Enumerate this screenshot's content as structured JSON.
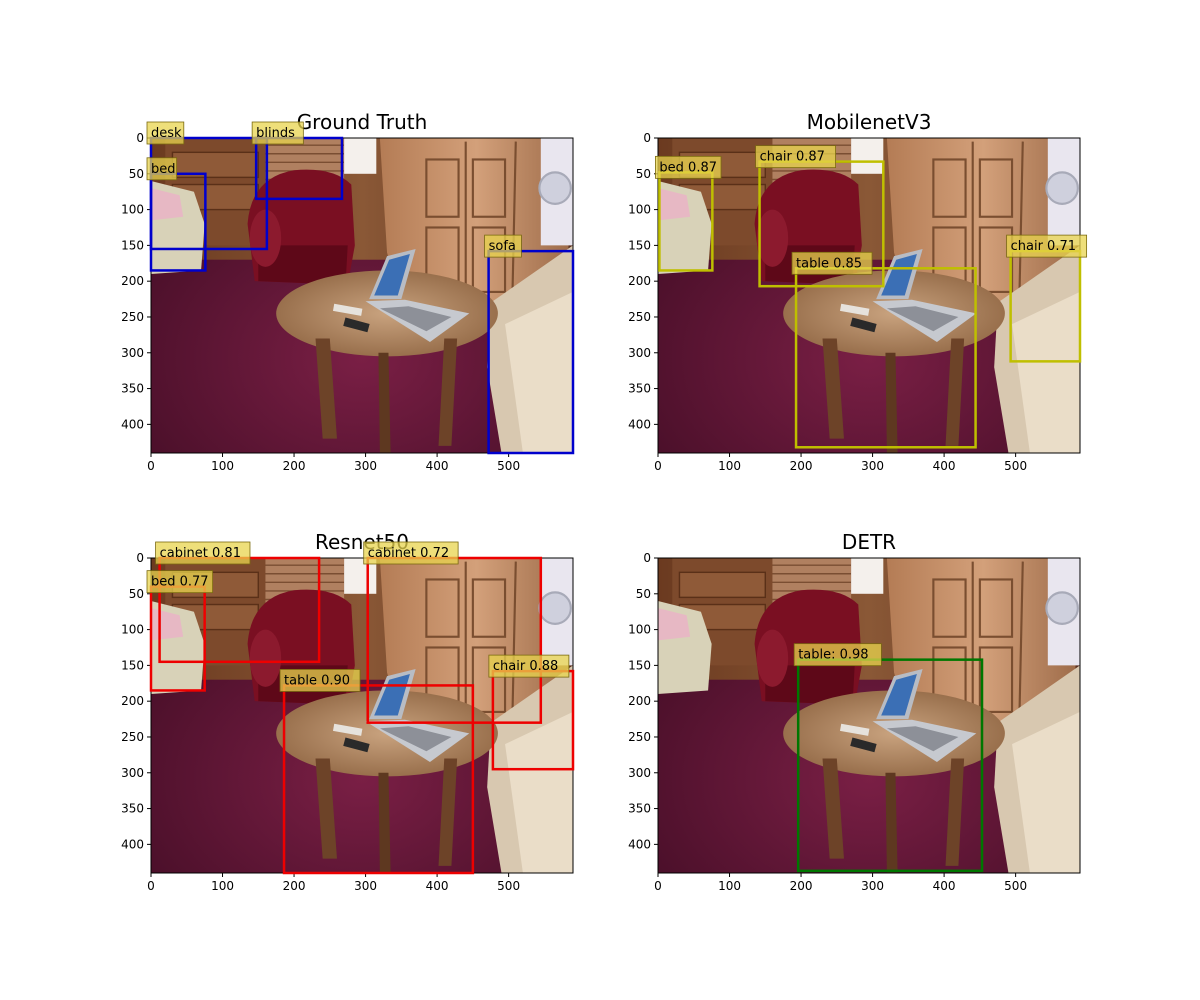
{
  "chart_data": [
    {
      "type": "image-detections",
      "title": "Ground Truth",
      "xlim": [
        0,
        590
      ],
      "ylim": [
        440,
        0
      ],
      "xticks": [
        0,
        100,
        200,
        300,
        400,
        500
      ],
      "yticks": [
        0,
        50,
        100,
        150,
        200,
        250,
        300,
        350,
        400
      ],
      "box_color": "#0000cc",
      "label_color": "#e8d44d",
      "boxes": [
        {
          "label": "desk",
          "x0": 0,
          "y0": 0,
          "x1": 162,
          "y1": 155
        },
        {
          "label": "bed",
          "x0": 0,
          "y0": 50,
          "x1": 76,
          "y1": 185
        },
        {
          "label": "blinds",
          "x0": 147,
          "y0": 0,
          "x1": 267,
          "y1": 85
        },
        {
          "label": "sofa",
          "x0": 472,
          "y0": 158,
          "x1": 590,
          "y1": 440
        }
      ]
    },
    {
      "type": "image-detections",
      "title": "MobilenetV3",
      "xlim": [
        0,
        590
      ],
      "ylim": [
        440,
        0
      ],
      "xticks": [
        0,
        100,
        200,
        300,
        400,
        500
      ],
      "yticks": [
        0,
        50,
        100,
        150,
        200,
        250,
        300,
        350,
        400
      ],
      "box_color": "#bfbf00",
      "label_color": "#e8d44d",
      "boxes": [
        {
          "label": "bed 0.87",
          "x0": 2,
          "y0": 48,
          "x1": 76,
          "y1": 185
        },
        {
          "label": "chair 0.87",
          "x0": 142,
          "y0": 33,
          "x1": 315,
          "y1": 207
        },
        {
          "label": "table 0.85",
          "x0": 193,
          "y0": 182,
          "x1": 444,
          "y1": 432
        },
        {
          "label": "chair 0.71",
          "x0": 493,
          "y0": 158,
          "x1": 590,
          "y1": 312
        }
      ]
    },
    {
      "type": "image-detections",
      "title": "Resnet50",
      "xlim": [
        0,
        590
      ],
      "ylim": [
        440,
        0
      ],
      "xticks": [
        0,
        100,
        200,
        300,
        400,
        500
      ],
      "yticks": [
        0,
        50,
        100,
        150,
        200,
        250,
        300,
        350,
        400
      ],
      "box_color": "#ee0000",
      "label_color": "#e8d44d",
      "boxes": [
        {
          "label": "cabinet 0.81",
          "x0": 12,
          "y0": 0,
          "x1": 235,
          "y1": 145
        },
        {
          "label": "bed 0.77",
          "x0": 0,
          "y0": 40,
          "x1": 75,
          "y1": 185
        },
        {
          "label": "cabinet 0.72",
          "x0": 303,
          "y0": 0,
          "x1": 545,
          "y1": 230
        },
        {
          "label": "table 0.90",
          "x0": 186,
          "y0": 178,
          "x1": 450,
          "y1": 440
        },
        {
          "label": "chair 0.88",
          "x0": 478,
          "y0": 158,
          "x1": 590,
          "y1": 295
        }
      ]
    },
    {
      "type": "image-detections",
      "title": "DETR",
      "xlim": [
        0,
        590
      ],
      "ylim": [
        440,
        0
      ],
      "xticks": [
        0,
        100,
        200,
        300,
        400,
        500
      ],
      "yticks": [
        0,
        50,
        100,
        150,
        200,
        250,
        300,
        350,
        400
      ],
      "box_color": "#007700",
      "label_color": "#e8d44d",
      "boxes": [
        {
          "label": "table: 0.98",
          "x0": 196,
          "y0": 142,
          "x1": 453,
          "y1": 437
        }
      ]
    }
  ]
}
